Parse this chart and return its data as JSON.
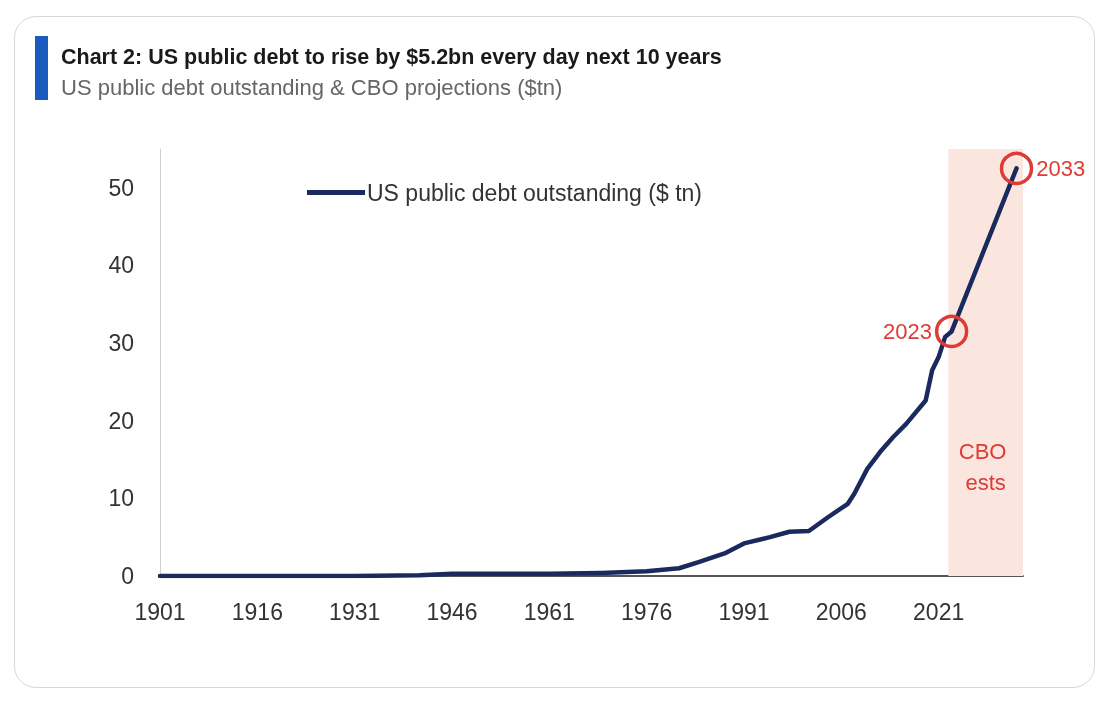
{
  "chart_data": {
    "type": "line",
    "title": "Chart 2: US public debt to rise by $5.2bn every day next 10 years",
    "subtitle": "US public debt outstanding & CBO projections ($tn)",
    "series": [
      {
        "name": "US public debt outstanding ($ tn)",
        "color": "#1b2a5e",
        "x": [
          1901,
          1931,
          1941,
          1946,
          1961,
          1969,
          1976,
          1981,
          1984,
          1988,
          1991,
          1995,
          1998,
          2001,
          2004,
          2007,
          2008,
          2010,
          2012,
          2014,
          2016,
          2019,
          2020,
          2021,
          2022,
          2023,
          2033
        ],
        "values": [
          0,
          0,
          0.1,
          0.3,
          0.3,
          0.4,
          0.6,
          1.0,
          1.8,
          2.9,
          4.2,
          5.0,
          5.7,
          5.8,
          7.6,
          9.3,
          10.6,
          13.8,
          16.0,
          17.9,
          19.6,
          22.6,
          26.5,
          28.2,
          30.8,
          31.5,
          52.5
        ]
      }
    ],
    "xlim": [
      1901,
      2034
    ],
    "xticks": [
      1901,
      1916,
      1931,
      1946,
      1961,
      1976,
      1991,
      2006,
      2021
    ],
    "ylim": [
      0,
      55
    ],
    "yticks": [
      0,
      10,
      20,
      30,
      40,
      50
    ],
    "bands": [
      {
        "axis": "x",
        "from": 2022.5,
        "to": 2034,
        "label": "CBO ests",
        "color": "#fbe6df"
      }
    ],
    "annotations": [
      {
        "text": "2023",
        "x": 2023,
        "y": 31.5
      },
      {
        "text": "2033",
        "x": 2033,
        "y": 52.5
      }
    ],
    "legend": "top",
    "marker": "none",
    "line_style": "solid"
  }
}
